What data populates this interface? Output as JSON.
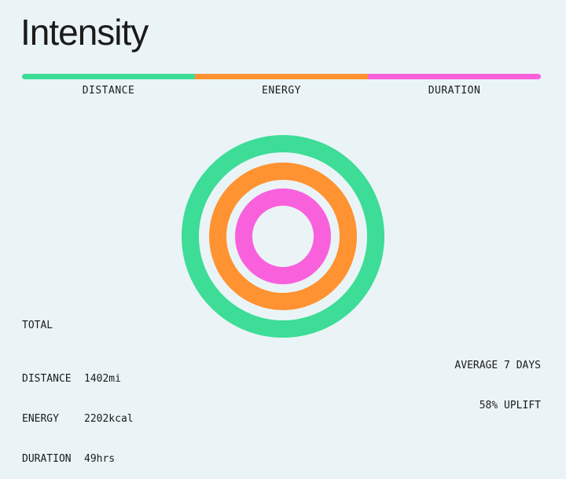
{
  "title": "Intensity",
  "colors": {
    "background": "#EAF4F6",
    "distance": "#3DDC97",
    "energy": "#FF9231",
    "duration": "#F961DC"
  },
  "legend": {
    "items": [
      {
        "label": "DISTANCE",
        "color": "#3DDC97"
      },
      {
        "label": "ENERGY",
        "color": "#FF9231"
      },
      {
        "label": "DURATION",
        "color": "#F961DC"
      }
    ]
  },
  "totals": {
    "heading": "TOTAL",
    "stats": [
      {
        "label": "DISTANCE",
        "value": "1402mi"
      },
      {
        "label": "ENERGY",
        "value": "2202kcal"
      },
      {
        "label": "DURATION",
        "value": "49hrs"
      }
    ]
  },
  "summary": {
    "line1": "AVERAGE 7 DAYS",
    "line2": "58% UPLIFT"
  }
}
